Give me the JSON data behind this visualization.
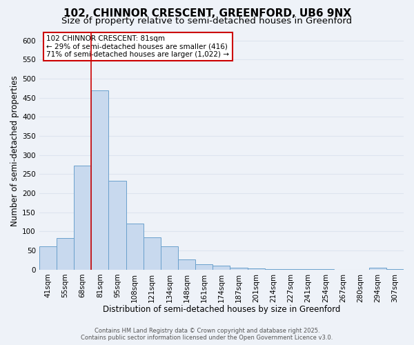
{
  "title": "102, CHINNOR CRESCENT, GREENFORD, UB6 9NX",
  "subtitle": "Size of property relative to semi-detached houses in Greenford",
  "xlabel": "Distribution of semi-detached houses by size in Greenford",
  "ylabel": "Number of semi-detached properties",
  "footer_line1": "Contains HM Land Registry data © Crown copyright and database right 2025.",
  "footer_line2": "Contains public sector information licensed under the Open Government Licence v3.0.",
  "categories": [
    "41sqm",
    "55sqm",
    "68sqm",
    "81sqm",
    "95sqm",
    "108sqm",
    "121sqm",
    "134sqm",
    "148sqm",
    "161sqm",
    "174sqm",
    "187sqm",
    "201sqm",
    "214sqm",
    "227sqm",
    "241sqm",
    "254sqm",
    "267sqm",
    "280sqm",
    "294sqm",
    "307sqm"
  ],
  "bar_values": [
    62,
    82,
    272,
    470,
    232,
    120,
    85,
    62,
    27,
    15,
    10,
    5,
    3,
    2,
    1,
    1,
    1,
    0,
    0,
    5,
    2
  ],
  "bar_color": "#c8d9ee",
  "bar_edge_color": "#6aa0cc",
  "vline_x": 2.5,
  "vline_color": "#cc0000",
  "annotation_title": "102 CHINNOR CRESCENT: 81sqm",
  "annotation_line1": "← 29% of semi-detached houses are smaller (416)",
  "annotation_line2": "71% of semi-detached houses are larger (1,022) →",
  "annotation_box_facecolor": "#ffffff",
  "annotation_box_edgecolor": "#cc0000",
  "ylim": [
    0,
    620
  ],
  "yticks": [
    0,
    50,
    100,
    150,
    200,
    250,
    300,
    350,
    400,
    450,
    500,
    550,
    600
  ],
  "bg_color": "#eef2f8",
  "grid_color": "#dde4ef",
  "title_fontsize": 11,
  "subtitle_fontsize": 9.5,
  "axis_label_fontsize": 8.5,
  "tick_fontsize": 7.5,
  "annotation_fontsize": 7.5
}
